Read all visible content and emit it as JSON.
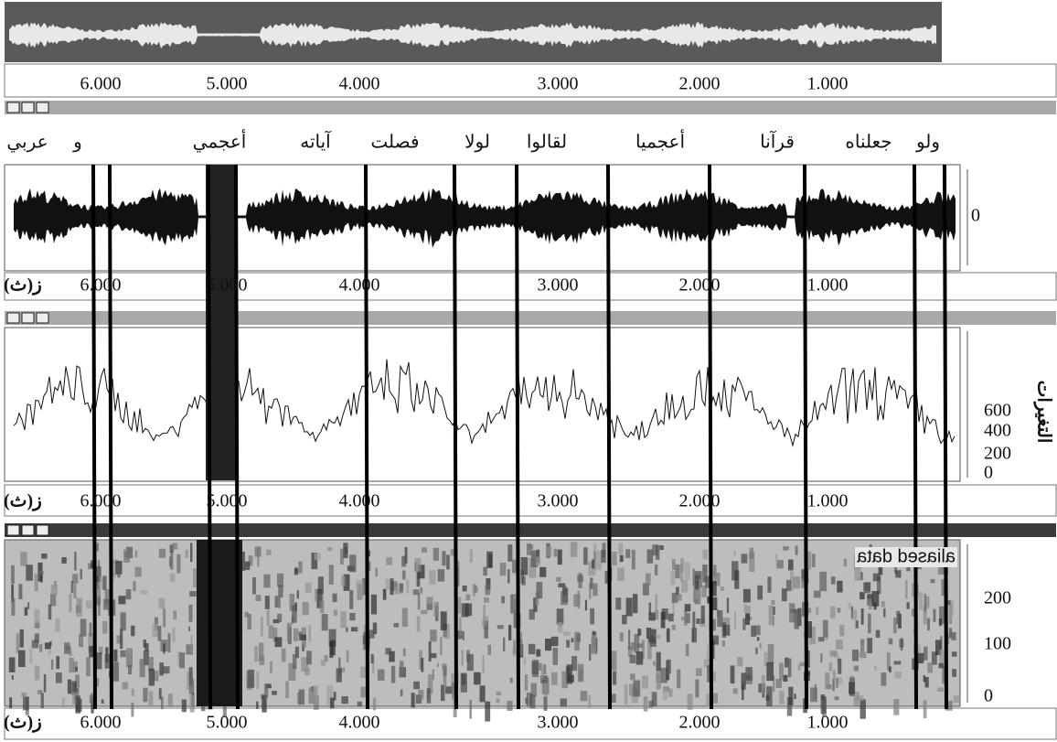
{
  "overview": {
    "ruler_labels": [
      "6.000",
      "5.000",
      "4.000",
      "3.000",
      "2.000",
      "1.000"
    ]
  },
  "waveform_panel": {
    "words": [
      "ولو",
      "جعلناه",
      "قرآنا",
      "أعجميا",
      "لقالوا",
      "لولا",
      "فصلت",
      "آياته",
      "أعجمي",
      "و",
      "عربي"
    ],
    "axis_labels": [
      "0"
    ],
    "time_unit": "ز(ث)",
    "ruler_labels": [
      "6.000",
      "5.000",
      "4.000",
      "3.000",
      "2.000",
      "1.000"
    ]
  },
  "pitch_panel": {
    "axis_title": "التغيرات",
    "axis_labels": [
      "600",
      "400",
      "200",
      "0"
    ],
    "time_unit": "ز(ث)",
    "ruler_labels": [
      "6.000",
      "5.000",
      "4.000",
      "3.000",
      "2.000",
      "1.000"
    ]
  },
  "spectrogram_panel": {
    "note": "aliased data",
    "axis_labels": [
      "200",
      "100",
      "0"
    ],
    "time_unit": "ز(ث)",
    "ruler_labels": [
      "6.000",
      "5.000",
      "4.000",
      "3.000",
      "2.000",
      "1.000"
    ]
  }
}
